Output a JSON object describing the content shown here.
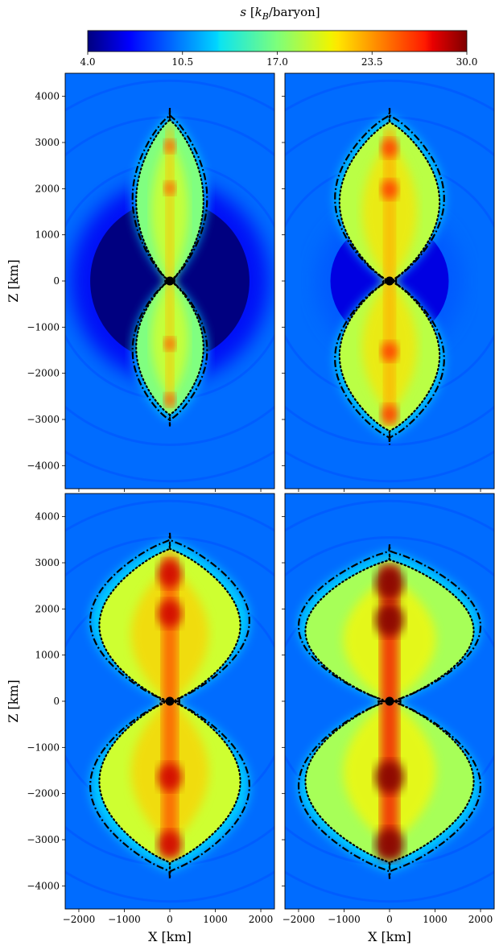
{
  "chart_data": {
    "type": "heatmap",
    "colorbar": {
      "label": "s [k_B/baryon]",
      "label_display": "s [kB/baryon]",
      "colormap": "jet",
      "range": [
        4.0,
        30.0
      ],
      "tick_labels": [
        "4.0",
        "10.5",
        "17.0",
        "23.5",
        "30.0"
      ],
      "ticks": [
        4.0,
        10.5,
        17.0,
        23.5,
        30.0
      ]
    },
    "xlabel": "X [km]",
    "ylabel": "Z [km]",
    "xlim": [
      -2300,
      2300
    ],
    "ylim": [
      -4500,
      4500
    ],
    "x_ticks": [
      -2000,
      -1000,
      0,
      1000,
      2000
    ],
    "x_tick_labels": [
      "−2000",
      "−1000",
      "0",
      "1000",
      "2000"
    ],
    "y_ticks": [
      4000,
      3000,
      2000,
      1000,
      0,
      -1000,
      -2000,
      -3000,
      -4000
    ],
    "y_tick_labels": [
      "4000",
      "3000",
      "2000",
      "1000",
      "0",
      "−1000",
      "−2000",
      "−3000",
      "−4000"
    ],
    "background_entropy": 10.0,
    "panels": [
      {
        "position": "top-left",
        "shock_outer": {
          "top": 3750,
          "bottom": -3150,
          "half_width": 820
        },
        "shock_inner": {
          "top": 3650,
          "bottom": -3030,
          "half_width": 740
        },
        "lobe_entropy": 17.0,
        "core_entropy": 22.0,
        "low_entropy_region": {
          "radius_km": 1750,
          "entropy": 4.0
        }
      },
      {
        "position": "top-right",
        "shock_outer": {
          "top": 3750,
          "bottom": -3550,
          "half_width": 1200
        },
        "shock_inner": {
          "top": 3600,
          "bottom": -3400,
          "half_width": 1100
        },
        "lobe_entropy": 18.5,
        "core_entropy": 22.5,
        "low_entropy_region": {
          "radius_km": 1300,
          "entropy": 6.5
        }
      },
      {
        "position": "bottom-left",
        "shock_outer": {
          "top": 3650,
          "bottom": -3850,
          "half_width": 1750
        },
        "shock_inner": {
          "top": 3450,
          "bottom": -3650,
          "half_width": 1550
        },
        "lobe_entropy": 19.0,
        "core_entropy": 25.0,
        "low_entropy_region": null
      },
      {
        "position": "bottom-right",
        "shock_outer": {
          "top": 3400,
          "bottom": -3850,
          "half_width": 2000
        },
        "shock_inner": {
          "top": 3200,
          "bottom": -3650,
          "half_width": 1850
        },
        "lobe_entropy": 18.0,
        "core_entropy": 27.0,
        "low_entropy_region": null
      }
    ]
  }
}
